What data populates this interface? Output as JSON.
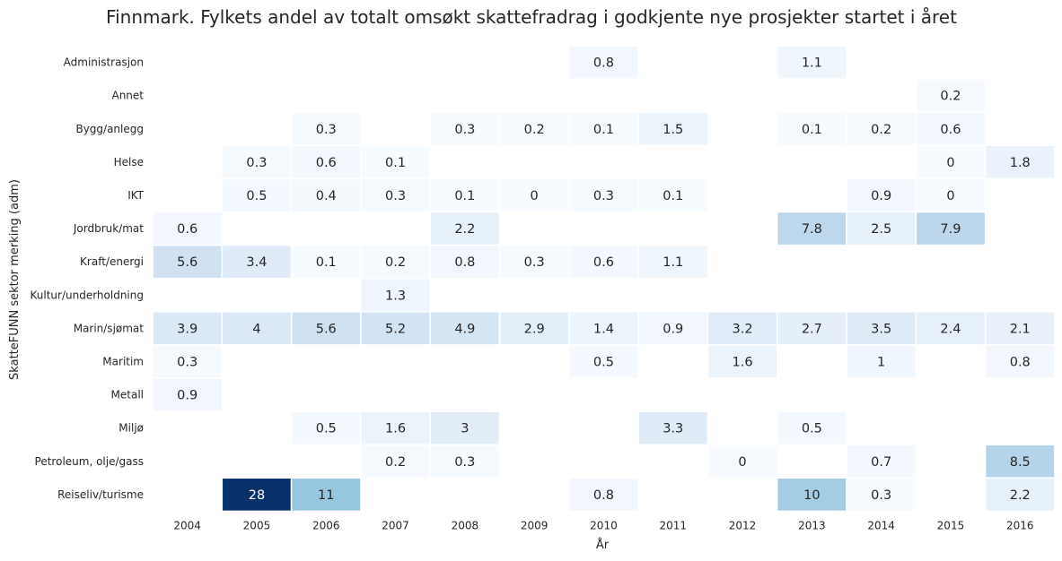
{
  "chart_data": {
    "type": "heatmap",
    "title": "Finnmark. Fylkets andel av totalt omsøkt skattefradrag i godkjente nye prosjekter startet i året",
    "xlabel": "År",
    "ylabel": "SkatteFUNN sektor merking (adm)",
    "x": [
      "2004",
      "2005",
      "2006",
      "2007",
      "2008",
      "2009",
      "2010",
      "2011",
      "2012",
      "2013",
      "2014",
      "2015",
      "2016"
    ],
    "y": [
      "Administrasjon",
      "Annet",
      "Bygg/anlegg",
      "Helse",
      "IKT",
      "Jordbruk/mat",
      "Kraft/energi",
      "Kultur/underholdning",
      "Marin/sjømat",
      "Maritim",
      "Metall",
      "Miljø",
      "Petroleum, olje/gass",
      "Reiseliv/turisme"
    ],
    "values": [
      [
        null,
        null,
        null,
        null,
        null,
        null,
        0.8,
        null,
        null,
        1.1,
        null,
        null,
        null
      ],
      [
        null,
        null,
        null,
        null,
        null,
        null,
        null,
        null,
        null,
        null,
        null,
        0.2,
        null
      ],
      [
        null,
        null,
        0.3,
        null,
        0.3,
        0.2,
        0.1,
        1.5,
        null,
        0.1,
        0.2,
        0.6,
        null
      ],
      [
        null,
        0.3,
        0.6,
        0.1,
        null,
        null,
        null,
        null,
        null,
        null,
        null,
        0,
        1.8
      ],
      [
        null,
        0.5,
        0.4,
        0.3,
        0.1,
        0,
        0.3,
        0.1,
        null,
        null,
        0.9,
        0,
        null
      ],
      [
        0.6,
        null,
        null,
        null,
        2.2,
        null,
        null,
        null,
        null,
        7.8,
        2.5,
        7.9,
        null
      ],
      [
        5.6,
        3.4,
        0.1,
        0.2,
        0.8,
        0.3,
        0.6,
        1.1,
        null,
        null,
        null,
        null,
        null
      ],
      [
        null,
        null,
        null,
        1.3,
        null,
        null,
        null,
        null,
        null,
        null,
        null,
        null,
        null
      ],
      [
        3.9,
        4,
        5.6,
        5.2,
        4.9,
        2.9,
        1.4,
        0.9,
        3.2,
        2.7,
        3.5,
        2.4,
        2.1
      ],
      [
        0.3,
        null,
        null,
        null,
        null,
        null,
        0.5,
        null,
        1.6,
        null,
        1,
        null,
        0.8
      ],
      [
        0.9,
        null,
        null,
        null,
        null,
        null,
        null,
        null,
        null,
        null,
        null,
        null,
        null
      ],
      [
        null,
        null,
        0.5,
        1.6,
        3,
        null,
        null,
        3.3,
        null,
        0.5,
        null,
        null,
        null
      ],
      [
        null,
        null,
        null,
        0.2,
        0.3,
        null,
        null,
        null,
        0,
        null,
        0.7,
        null,
        8.5
      ],
      [
        null,
        28,
        11,
        null,
        null,
        null,
        0.8,
        null,
        null,
        10,
        0.3,
        null,
        2.2
      ]
    ],
    "vmin": 0,
    "vmax": 28,
    "colormap": "Blues",
    "grid": false
  }
}
